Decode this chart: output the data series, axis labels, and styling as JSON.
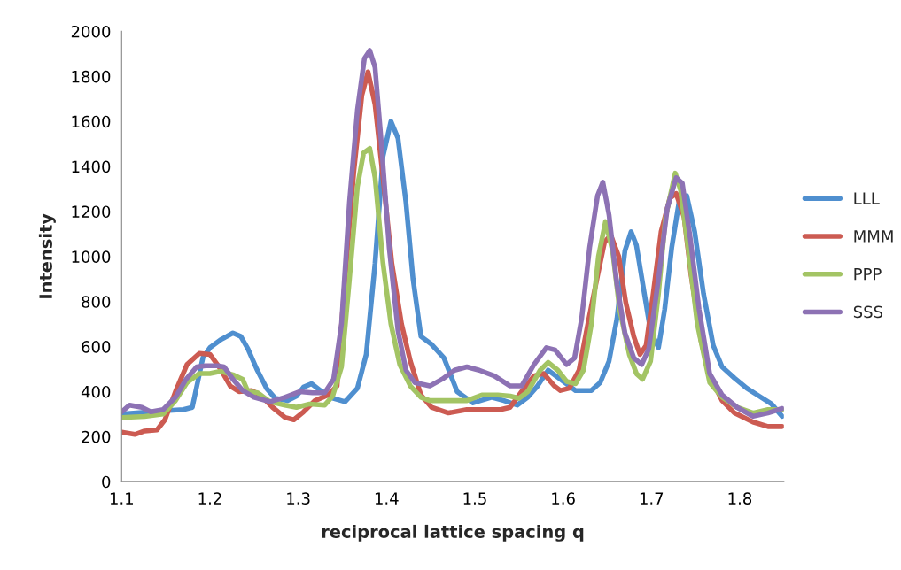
{
  "chart_data": {
    "type": "line",
    "xlabel": "reciprocal lattice spacing q",
    "ylabel": "Intensity",
    "xlim": [
      1.1,
      1.85
    ],
    "xticks": [
      1.1,
      1.2,
      1.3,
      1.4,
      1.5,
      1.6,
      1.7,
      1.8
    ],
    "ylim": [
      0,
      2000
    ],
    "yticks": [
      0,
      200,
      400,
      600,
      800,
      1000,
      1200,
      1400,
      1600,
      1800,
      2000
    ],
    "grid": false,
    "legend": "right",
    "marker": "none",
    "line_style": "solid",
    "series": [
      {
        "name": "LLL",
        "color": "#4f8fcf",
        "x": [
          1.1,
          1.15,
          1.17,
          1.18,
          1.192,
          1.2,
          1.212,
          1.226,
          1.235,
          1.243,
          1.253,
          1.264,
          1.274,
          1.288,
          1.298,
          1.306,
          1.315,
          1.325,
          1.34,
          1.353,
          1.367,
          1.377,
          1.387,
          1.396,
          1.405,
          1.413,
          1.422,
          1.43,
          1.439,
          1.451,
          1.465,
          1.48,
          1.498,
          1.519,
          1.533,
          1.548,
          1.56,
          1.571,
          1.583,
          1.597,
          1.614,
          1.632,
          1.642,
          1.652,
          1.661,
          1.67,
          1.677,
          1.683,
          1.692,
          1.699,
          1.708,
          1.715,
          1.723,
          1.732,
          1.74,
          1.749,
          1.759,
          1.77,
          1.78,
          1.794,
          1.808,
          1.822,
          1.836,
          1.848
        ],
        "values": [
          300,
          315,
          320,
          330,
          550,
          595,
          630,
          660,
          645,
          590,
          500,
          415,
          370,
          360,
          380,
          420,
          435,
          405,
          370,
          355,
          415,
          565,
          970,
          1445,
          1600,
          1525,
          1240,
          900,
          645,
          610,
          550,
          400,
          350,
          375,
          360,
          340,
          375,
          425,
          495,
          455,
          405,
          405,
          440,
          535,
          725,
          1025,
          1110,
          1050,
          835,
          670,
          595,
          765,
          1040,
          1260,
          1270,
          1110,
          835,
          605,
          510,
          460,
          415,
          380,
          345,
          290
        ]
      },
      {
        "name": "MMM",
        "color": "#cc5b52",
        "x": [
          1.1,
          1.115,
          1.126,
          1.14,
          1.149,
          1.161,
          1.174,
          1.188,
          1.2,
          1.212,
          1.223,
          1.233,
          1.247,
          1.257,
          1.271,
          1.285,
          1.295,
          1.306,
          1.319,
          1.334,
          1.344,
          1.353,
          1.363,
          1.372,
          1.379,
          1.387,
          1.396,
          1.406,
          1.417,
          1.427,
          1.439,
          1.451,
          1.47,
          1.491,
          1.512,
          1.529,
          1.54,
          1.553,
          1.567,
          1.578,
          1.59,
          1.597,
          1.607,
          1.618,
          1.628,
          1.639,
          1.647,
          1.654,
          1.663,
          1.671,
          1.68,
          1.687,
          1.694,
          1.702,
          1.711,
          1.721,
          1.728,
          1.737,
          1.745,
          1.756,
          1.766,
          1.78,
          1.794,
          1.815,
          1.832,
          1.848
        ],
        "values": [
          220,
          210,
          225,
          230,
          275,
          400,
          520,
          570,
          565,
          500,
          425,
          400,
          405,
          385,
          330,
          285,
          275,
          310,
          360,
          385,
          425,
          900,
          1380,
          1715,
          1820,
          1675,
          1350,
          970,
          700,
          535,
          385,
          330,
          305,
          320,
          320,
          320,
          330,
          400,
          470,
          480,
          425,
          405,
          415,
          495,
          700,
          915,
          1065,
          1095,
          1000,
          795,
          645,
          565,
          605,
          835,
          1110,
          1260,
          1280,
          1175,
          915,
          630,
          470,
          360,
          305,
          265,
          245,
          245
        ]
      },
      {
        "name": "PPP",
        "color": "#a3c464",
        "x": [
          1.1,
          1.126,
          1.147,
          1.161,
          1.174,
          1.188,
          1.2,
          1.212,
          1.226,
          1.237,
          1.243,
          1.254,
          1.268,
          1.285,
          1.298,
          1.313,
          1.33,
          1.339,
          1.349,
          1.358,
          1.367,
          1.374,
          1.381,
          1.387,
          1.396,
          1.405,
          1.415,
          1.427,
          1.439,
          1.449,
          1.47,
          1.491,
          1.508,
          1.526,
          1.54,
          1.55,
          1.56,
          1.574,
          1.583,
          1.594,
          1.604,
          1.614,
          1.623,
          1.632,
          1.64,
          1.648,
          1.656,
          1.664,
          1.675,
          1.683,
          1.69,
          1.699,
          1.708,
          1.716,
          1.727,
          1.733,
          1.742,
          1.752,
          1.766,
          1.78,
          1.797,
          1.815,
          1.832,
          1.848
        ],
        "values": [
          285,
          290,
          300,
          360,
          440,
          480,
          480,
          490,
          475,
          455,
          400,
          395,
          355,
          340,
          330,
          345,
          340,
          380,
          510,
          900,
          1310,
          1460,
          1480,
          1350,
          970,
          700,
          520,
          425,
          375,
          360,
          360,
          360,
          385,
          385,
          380,
          370,
          400,
          495,
          530,
          495,
          445,
          435,
          495,
          700,
          1000,
          1155,
          1025,
          765,
          565,
          480,
          455,
          535,
          835,
          1175,
          1370,
          1295,
          1025,
          700,
          440,
          375,
          330,
          305,
          320,
          320
        ]
      },
      {
        "name": "SSS",
        "color": "#8d72b4",
        "x": [
          1.1,
          1.109,
          1.123,
          1.133,
          1.147,
          1.161,
          1.173,
          1.185,
          1.195,
          1.209,
          1.216,
          1.226,
          1.237,
          1.25,
          1.268,
          1.285,
          1.302,
          1.316,
          1.33,
          1.34,
          1.349,
          1.358,
          1.367,
          1.375,
          1.381,
          1.387,
          1.394,
          1.403,
          1.413,
          1.422,
          1.432,
          1.449,
          1.463,
          1.477,
          1.491,
          1.505,
          1.522,
          1.54,
          1.553,
          1.567,
          1.581,
          1.591,
          1.604,
          1.613,
          1.621,
          1.63,
          1.639,
          1.645,
          1.652,
          1.661,
          1.67,
          1.68,
          1.689,
          1.697,
          1.708,
          1.718,
          1.728,
          1.735,
          1.744,
          1.754,
          1.766,
          1.78,
          1.797,
          1.815,
          1.832,
          1.848
        ],
        "values": [
          310,
          340,
          330,
          310,
          320,
          375,
          455,
          510,
          515,
          515,
          510,
          455,
          405,
          375,
          355,
          375,
          400,
          395,
          395,
          455,
          700,
          1240,
          1650,
          1880,
          1915,
          1840,
          1510,
          1040,
          670,
          495,
          440,
          425,
          455,
          495,
          510,
          495,
          470,
          425,
          425,
          520,
          595,
          585,
          520,
          550,
          725,
          1040,
          1270,
          1330,
          1185,
          875,
          660,
          550,
          520,
          590,
          900,
          1215,
          1350,
          1325,
          1080,
          765,
          480,
          385,
          330,
          290,
          305,
          325
        ]
      }
    ]
  }
}
